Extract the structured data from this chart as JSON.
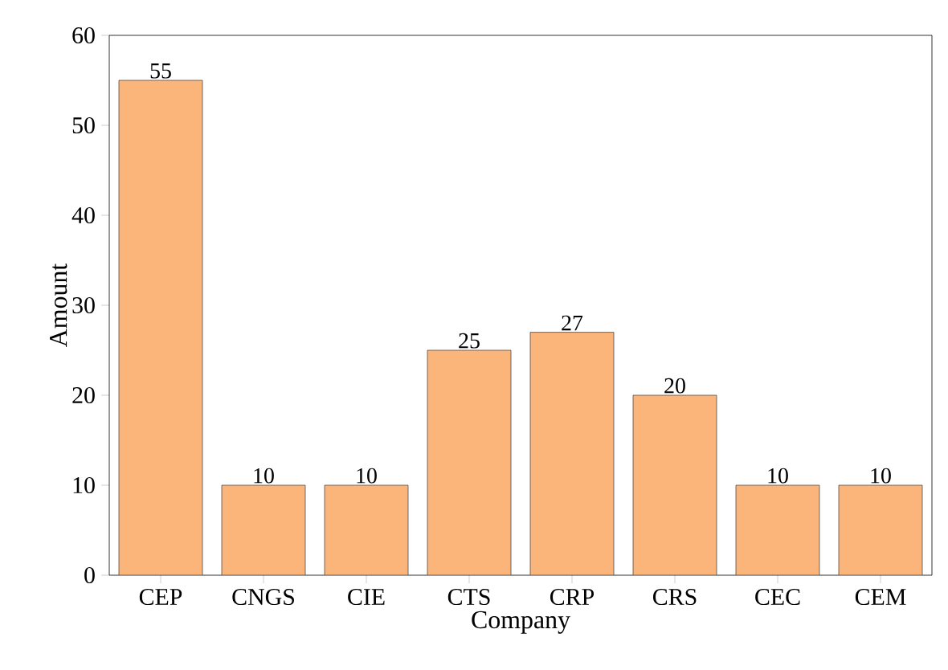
{
  "chart_data": {
    "type": "bar",
    "xlabel": "Company",
    "ylabel": "Amount",
    "categories": [
      "CEP",
      "CNGS",
      "CIE",
      "CTS",
      "CRP",
      "CRS",
      "CEC",
      "CEM"
    ],
    "values": [
      55,
      10,
      10,
      25,
      27,
      20,
      10,
      10
    ],
    "color": "#fbb57a",
    "ylim": [
      0,
      60
    ],
    "yticks": [
      0,
      10,
      20,
      30,
      40,
      50,
      60
    ],
    "data_labels": true,
    "grid": false
  }
}
